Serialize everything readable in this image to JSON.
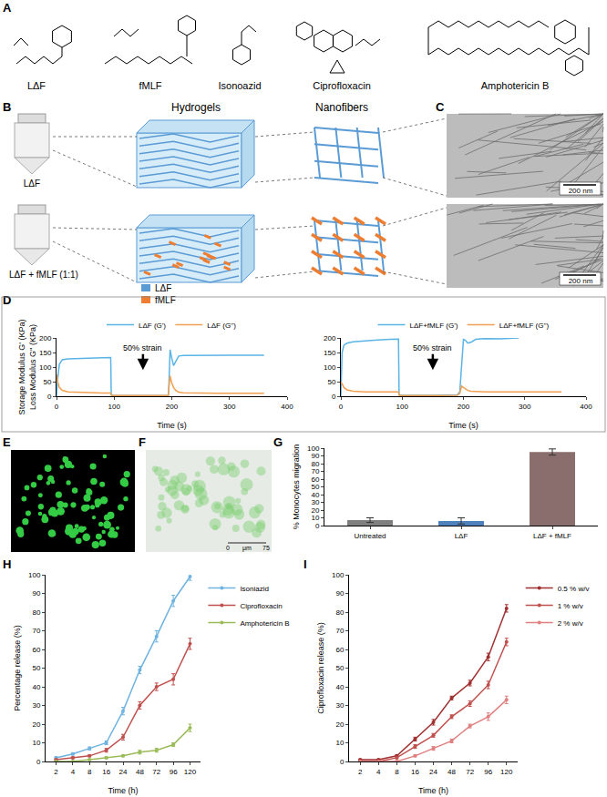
{
  "panel_letters": [
    "A",
    "B",
    "C",
    "D",
    "E",
    "F",
    "G",
    "H",
    "I"
  ],
  "structures": [
    "LΔF",
    "fMLF",
    "Isonoazid",
    "Ciprofloxacin",
    "Amphotericin B"
  ],
  "hydrogel_scheme": {
    "headers": [
      "Hydrogels",
      "Nanofibers"
    ],
    "vials": [
      "LΔF",
      "LΔF + fMLF (1:1)"
    ],
    "legend": [
      {
        "name": "LΔF",
        "color": "#5b9bd5"
      },
      {
        "name": "fMLF",
        "color": "#ed7d31"
      }
    ]
  },
  "tem_images": {
    "scale_bar": "200 nm"
  },
  "microscopy": {
    "scale_labels": [
      "0",
      "μm",
      "75"
    ]
  },
  "chart_data": [
    {
      "type": "line",
      "xlabel": "Time (s)",
      "ylabel": [
        "Storage Modulus G' (KPa)",
        "Loss Modulus G'' (KPa)"
      ],
      "xlim": [
        0,
        400
      ],
      "xticks": [
        0,
        100,
        200,
        300,
        400
      ],
      "ylim": [
        0,
        200
      ],
      "yticks": [
        0,
        50,
        100,
        150,
        200
      ],
      "grid": false,
      "legend": "top",
      "annotations": [
        {
          "text": "50% strain",
          "x": 150,
          "y": 90
        }
      ],
      "series": [
        {
          "name": "LΔF (G')",
          "color": "#5ab4e5",
          "x": [
            0,
            2,
            5,
            10,
            20,
            40,
            60,
            80,
            94,
            95,
            100,
            150,
            194,
            195,
            197,
            200,
            203,
            207,
            212,
            220,
            240,
            280,
            320,
            360
          ],
          "values": [
            0,
            60,
            110,
            125,
            128,
            130,
            131,
            132,
            133,
            5,
            2,
            2,
            3,
            40,
            160,
            130,
            105,
            120,
            138,
            140,
            140,
            141,
            141,
            141
          ]
        },
        {
          "name": "LΔF (G'')",
          "color": "#f0a050",
          "x": [
            0,
            2,
            5,
            10,
            20,
            40,
            60,
            80,
            94,
            95,
            100,
            150,
            194,
            195,
            197,
            200,
            203,
            207,
            212,
            220,
            240,
            280,
            320,
            360
          ],
          "values": [
            75,
            50,
            30,
            20,
            15,
            13,
            12,
            11,
            11,
            3,
            2,
            2,
            2,
            30,
            70,
            45,
            30,
            20,
            14,
            12,
            11,
            10,
            10,
            10
          ]
        }
      ]
    },
    {
      "type": "line",
      "xlabel": "Time (s)",
      "xlim": [
        0,
        400
      ],
      "xticks": [
        0,
        100,
        200,
        300,
        400
      ],
      "ylim": [
        0,
        200
      ],
      "yticks": [
        0,
        50,
        100,
        150,
        200
      ],
      "grid": false,
      "legend": "top",
      "annotations": [
        {
          "text": "50% strain",
          "x": 150,
          "y": 90
        }
      ],
      "series": [
        {
          "name": "LΔF+fMLF (G')",
          "color": "#5ab4e5",
          "x": [
            0,
            2,
            5,
            10,
            20,
            40,
            60,
            80,
            94,
            95,
            100,
            150,
            190,
            194,
            197,
            200,
            203,
            207,
            212,
            220,
            235,
            260,
            290
          ],
          "values": [
            0,
            150,
            175,
            182,
            187,
            191,
            193,
            195,
            196,
            5,
            3,
            3,
            5,
            15,
            100,
            195,
            192,
            182,
            185,
            195,
            198,
            197,
            200
          ]
        },
        {
          "name": "LΔF+fMLF (G'')",
          "color": "#f0a050",
          "x": [
            0,
            2,
            5,
            10,
            20,
            40,
            60,
            80,
            94,
            95,
            100,
            150,
            190,
            194,
            197,
            200,
            203,
            207,
            212,
            220,
            235,
            260,
            290,
            320,
            360
          ],
          "values": [
            50,
            40,
            30,
            22,
            17,
            15,
            15,
            15,
            15,
            3,
            2,
            2,
            3,
            10,
            35,
            30,
            25,
            20,
            17,
            16,
            15,
            15,
            15,
            15,
            15
          ]
        }
      ]
    },
    {
      "type": "bar",
      "ylabel": "% Monocytes migration",
      "categories": [
        "Untreated",
        "LΔF",
        "LΔF + fMLF"
      ],
      "values": [
        7,
        6,
        95
      ],
      "errors": [
        3,
        4,
        4
      ],
      "colors": [
        "#7f7f7f",
        "#4f81bd",
        "#8a6d6d"
      ],
      "ylim": [
        0,
        100
      ],
      "yticks": [
        0,
        10,
        20,
        30,
        40,
        50,
        60,
        70,
        80,
        90,
        100
      ],
      "grid": false
    },
    {
      "type": "line",
      "xlabel": "Time (h)",
      "ylabel": "Percentage release (%)",
      "categories": [
        "2",
        "4",
        "8",
        "16",
        "24",
        "48",
        "72",
        "96",
        "120"
      ],
      "ylim": [
        0,
        100
      ],
      "yticks": [
        0,
        10,
        20,
        30,
        40,
        50,
        60,
        70,
        80,
        90,
        100
      ],
      "grid": false,
      "legend": "right",
      "marker": "circle",
      "series": [
        {
          "name": "Isoniazid",
          "color": "#6fb3e0",
          "values": [
            2,
            4,
            7,
            10,
            27,
            49,
            67,
            86,
            99
          ],
          "errors": [
            0.5,
            0.5,
            0.8,
            1,
            2,
            2,
            3,
            3,
            2
          ]
        },
        {
          "name": "Ciprofloxacin",
          "color": "#c0504d",
          "values": [
            1,
            2,
            3,
            6,
            13,
            30,
            40,
            44,
            63
          ],
          "errors": [
            0.3,
            0.5,
            0.5,
            1,
            1.5,
            2,
            2,
            3,
            3
          ]
        },
        {
          "name": "Amphotericin B",
          "color": "#9bbb59",
          "values": [
            0,
            0,
            1,
            2,
            3,
            5,
            6,
            9,
            18
          ],
          "errors": [
            0.2,
            0.2,
            0.3,
            0.5,
            0.5,
            1,
            1,
            1,
            2
          ]
        }
      ]
    },
    {
      "type": "line",
      "xlabel": "Time (h)",
      "ylabel": "Ciprofloxacin release (%)",
      "categories": [
        "2",
        "4",
        "8",
        "16",
        "24",
        "48",
        "72",
        "96",
        "120"
      ],
      "ylim": [
        0,
        100
      ],
      "yticks": [
        0,
        10,
        20,
        30,
        40,
        50,
        60,
        70,
        80,
        90,
        100
      ],
      "grid": false,
      "legend": "right",
      "marker": "circle",
      "series": [
        {
          "name": "0.5 % w/v",
          "color": "#a03030",
          "values": [
            1,
            1,
            3,
            12,
            21,
            34,
            42,
            56,
            82
          ],
          "errors": [
            0.3,
            0.3,
            0.5,
            1,
            1.5,
            1,
            1.5,
            2,
            2
          ]
        },
        {
          "name": "1 % w/v",
          "color": "#c0504d",
          "values": [
            0,
            0,
            2,
            8,
            14,
            24,
            31,
            41,
            64
          ],
          "errors": [
            0.2,
            0.2,
            0.5,
            1,
            1,
            1,
            1.5,
            2,
            2
          ]
        },
        {
          "name": "2 % w/v",
          "color": "#e08080",
          "values": [
            0,
            0,
            0,
            3,
            7,
            11,
            19,
            24,
            33
          ],
          "errors": [
            0.2,
            0.2,
            0.2,
            0.5,
            1,
            1,
            1,
            2,
            2
          ]
        }
      ]
    }
  ]
}
